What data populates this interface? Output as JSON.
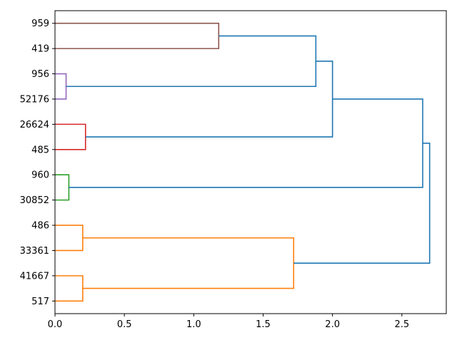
{
  "figure": {
    "background": "#ffffff",
    "frame_color": "#000000"
  },
  "chart_data": {
    "type": "dendrogram",
    "orientation": "right",
    "title": "",
    "xlabel": "",
    "ylabel": "",
    "grid": false,
    "legend": "none",
    "xlim": [
      0,
      2.82
    ],
    "xticks": [
      0.0,
      0.5,
      1.0,
      1.5,
      2.0,
      2.5
    ],
    "xtick_labels": [
      "0.0",
      "0.5",
      "1.0",
      "1.5",
      "2.0",
      "2.5"
    ],
    "leaves": [
      "959",
      "419",
      "956",
      "52176",
      "26624",
      "485",
      "960",
      "30852",
      "486",
      "33361",
      "41667",
      "517"
    ],
    "colors": {
      "blue": "#1f77b4",
      "orange": "#ff7f0e",
      "green": "#2ca02c",
      "red": "#d62728",
      "purple": "#9467bd",
      "brown": "#8c564b"
    },
    "merges": [
      {
        "id": "m1",
        "a": "L0",
        "b": "L1",
        "distance": 1.18,
        "color": "brown"
      },
      {
        "id": "m2",
        "a": "L2",
        "b": "L3",
        "distance": 0.08,
        "color": "purple"
      },
      {
        "id": "m3",
        "a": "m1",
        "b": "m2",
        "distance": 1.88,
        "color": "blue"
      },
      {
        "id": "m4",
        "a": "L4",
        "b": "L5",
        "distance": 0.22,
        "color": "red"
      },
      {
        "id": "m5",
        "a": "m3",
        "b": "m4",
        "distance": 2.0,
        "color": "blue"
      },
      {
        "id": "m6",
        "a": "L6",
        "b": "L7",
        "distance": 0.1,
        "color": "green"
      },
      {
        "id": "m7",
        "a": "m5",
        "b": "m6",
        "distance": 2.65,
        "color": "blue"
      },
      {
        "id": "m8",
        "a": "L8",
        "b": "L9",
        "distance": 0.2,
        "color": "orange"
      },
      {
        "id": "m9",
        "a": "L10",
        "b": "L11",
        "distance": 0.2,
        "color": "orange"
      },
      {
        "id": "m10",
        "a": "m8",
        "b": "m9",
        "distance": 1.72,
        "color": "orange"
      },
      {
        "id": "m11",
        "a": "m7",
        "b": "m10",
        "distance": 2.7,
        "color": "blue"
      }
    ]
  }
}
